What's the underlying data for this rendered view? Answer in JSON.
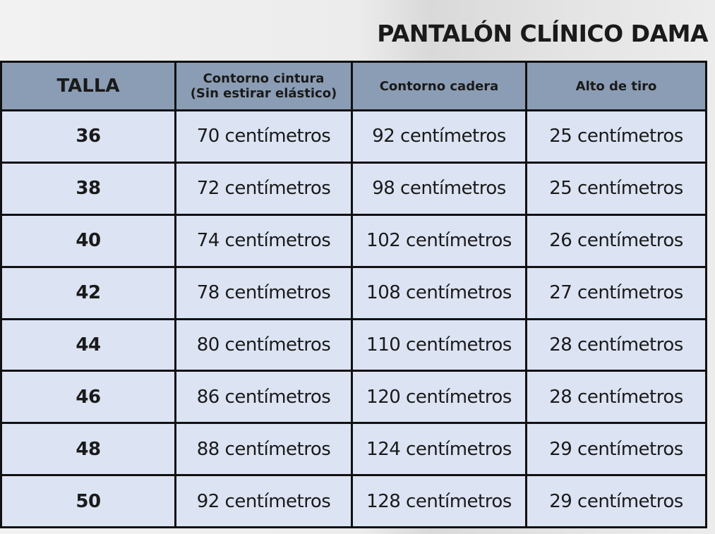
{
  "title": "PANTALÓN CLÍNICO DAMA",
  "colors": {
    "header_bg": "#8b9db5",
    "cell_bg": "#dce3f3",
    "border": "#111111"
  },
  "headers": [
    "TALLA",
    "Contorno cintura\n(Sin estirar elástico)",
    "Contorno cadera",
    "Alto de tiro"
  ],
  "header_lines": {
    "cintura_1": "Contorno cintura",
    "cintura_2": "(Sin estirar elástico)"
  },
  "rows": [
    [
      "36",
      "70 centímetros",
      "92 centímetros",
      "25 centímetros"
    ],
    [
      "38",
      "72 centímetros",
      "98 centímetros",
      "25 centímetros"
    ],
    [
      "40",
      "74 centímetros",
      "102 centímetros",
      "26 centímetros"
    ],
    [
      "42",
      "78 centímetros",
      "108 centímetros",
      "27 centímetros"
    ],
    [
      "44",
      "80 centímetros",
      "110 centímetros",
      "28 centímetros"
    ],
    [
      "46",
      "86 centímetros",
      "120 centímetros",
      "28 centímetros"
    ],
    [
      "48",
      "88 centímetros",
      "124 centímetros",
      "29 centímetros"
    ],
    [
      "50",
      "92 centímetros",
      "128 centímetros",
      "29 centímetros"
    ]
  ]
}
